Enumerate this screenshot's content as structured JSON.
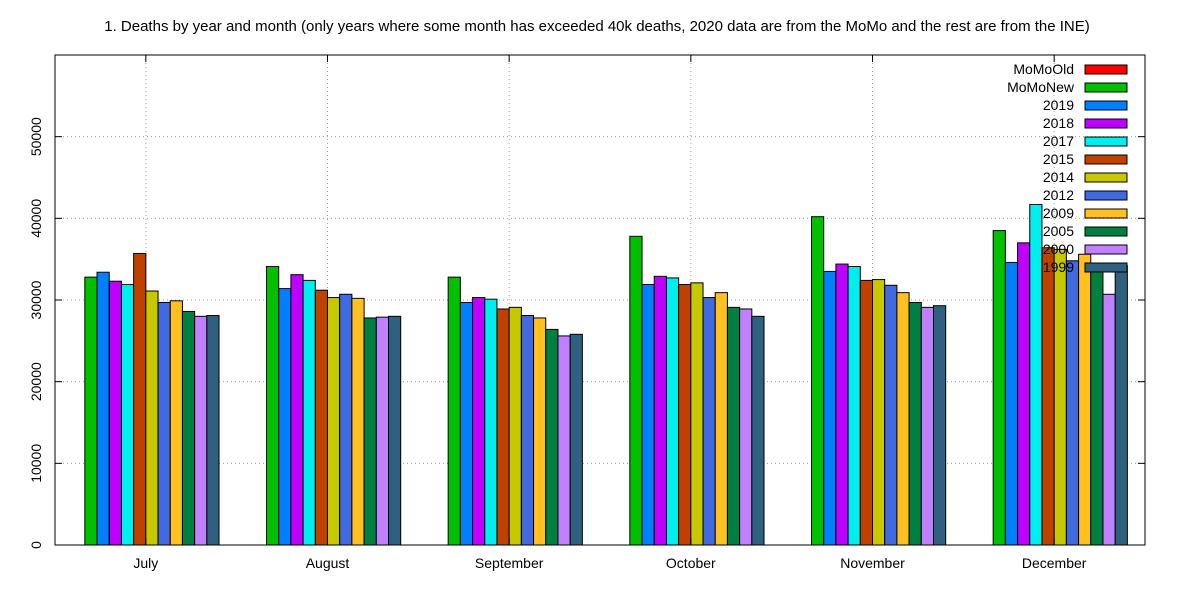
{
  "chart_data": {
    "type": "bar",
    "title": "1. Deaths by year and month (only years where some month has exceeded 40k deaths, 2020 data are from the MoMo and the rest are from the INE)",
    "xlabel": "",
    "ylabel": "",
    "ylim": [
      0,
      60000
    ],
    "y_ticks": [
      "0",
      "10000",
      "20000",
      "30000",
      "40000",
      "50000"
    ],
    "grid": true,
    "legend_position": "top-right",
    "categories": [
      "July",
      "August",
      "September",
      "October",
      "November",
      "December"
    ],
    "series": [
      {
        "name": "MoMoOld",
        "color": "#ff0000",
        "values": [
          0,
          0,
          0,
          0,
          0,
          0
        ]
      },
      {
        "name": "MoMoNew",
        "color": "#00c000",
        "values": [
          32800,
          34100,
          32800,
          37800,
          40200,
          38500
        ]
      },
      {
        "name": "2019",
        "color": "#0080ff",
        "values": [
          33400,
          31400,
          29700,
          31900,
          33500,
          34600
        ]
      },
      {
        "name": "2018",
        "color": "#c000ff",
        "values": [
          32300,
          33100,
          30300,
          32900,
          34400,
          37000
        ]
      },
      {
        "name": "2017",
        "color": "#00eeee",
        "values": [
          31900,
          32400,
          30100,
          32700,
          34100,
          41700
        ]
      },
      {
        "name": "2015",
        "color": "#c04000",
        "values": [
          35700,
          31200,
          28900,
          31900,
          32400,
          36400
        ]
      },
      {
        "name": "2014",
        "color": "#c8c800",
        "values": [
          31100,
          30300,
          29100,
          32100,
          32500,
          36200
        ]
      },
      {
        "name": "2012",
        "color": "#4169e1",
        "values": [
          29700,
          30700,
          28100,
          30300,
          31800,
          34800
        ]
      },
      {
        "name": "2009",
        "color": "#ffc020",
        "values": [
          29900,
          30200,
          27800,
          30900,
          30900,
          35600
        ]
      },
      {
        "name": "2005",
        "color": "#008040",
        "values": [
          28600,
          27800,
          26400,
          29100,
          29700,
          33500
        ]
      },
      {
        "name": "2000",
        "color": "#c080ff",
        "values": [
          28000,
          27900,
          25600,
          28900,
          29100,
          30700
        ]
      },
      {
        "name": "1999",
        "color": "#306080",
        "values": [
          28100,
          28000,
          25800,
          28000,
          29300,
          34200
        ]
      }
    ]
  }
}
